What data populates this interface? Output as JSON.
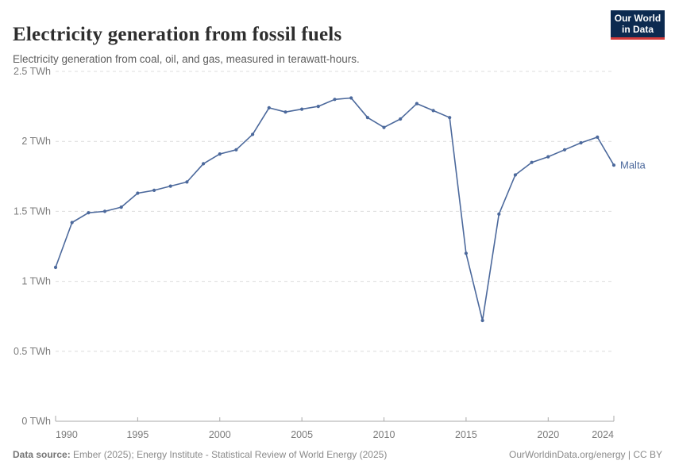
{
  "header": {
    "title": "Electricity generation from fossil fuels",
    "subtitle": "Electricity generation from coal, oil, and gas, measured in terawatt-hours.",
    "logo": {
      "line1": "Our World",
      "line2": "in Data",
      "background_color": "#0c2a50",
      "accent_color": "#d23a3a"
    }
  },
  "chart_data": {
    "type": "line",
    "title": "Electricity generation from fossil fuels",
    "subtitle": "Electricity generation from coal, oil, and gas, measured in terawatt-hours.",
    "xlabel": "",
    "ylabel": "TWh",
    "xlim": [
      1990,
      2024
    ],
    "ylim": [
      0,
      2.5
    ],
    "grid": true,
    "legend_position": "end-of-line",
    "x_ticks": [
      1990,
      1995,
      2000,
      2005,
      2010,
      2015,
      2020,
      2024
    ],
    "y_ticks": [
      0,
      0.5,
      1,
      1.5,
      2,
      2.5
    ],
    "y_tick_labels": [
      "0 TWh",
      "0.5 TWh",
      "1 TWh",
      "1.5 TWh",
      "2 TWh",
      "2.5 TWh"
    ],
    "series": [
      {
        "name": "Malta",
        "color": "#4c699c",
        "x": [
          1990,
          1991,
          1992,
          1993,
          1994,
          1995,
          1996,
          1997,
          1998,
          1999,
          2000,
          2001,
          2002,
          2003,
          2004,
          2005,
          2006,
          2007,
          2008,
          2009,
          2010,
          2011,
          2012,
          2013,
          2014,
          2015,
          2016,
          2017,
          2018,
          2019,
          2020,
          2021,
          2022,
          2023,
          2024
        ],
        "values": [
          1.1,
          1.42,
          1.49,
          1.5,
          1.53,
          1.63,
          1.65,
          1.68,
          1.71,
          1.84,
          1.91,
          1.94,
          2.05,
          2.24,
          2.21,
          2.23,
          2.25,
          2.3,
          2.31,
          2.17,
          2.1,
          2.16,
          2.27,
          2.22,
          2.17,
          1.2,
          0.72,
          1.48,
          1.76,
          1.85,
          1.89,
          1.94,
          1.99,
          2.03,
          1.83
        ]
      }
    ]
  },
  "footer": {
    "source_label": "Data source:",
    "source_text": " Ember (2025); Energy Institute - Statistical Review of World Energy (2025)",
    "right_text": "OurWorldinData.org/energy | CC BY"
  }
}
